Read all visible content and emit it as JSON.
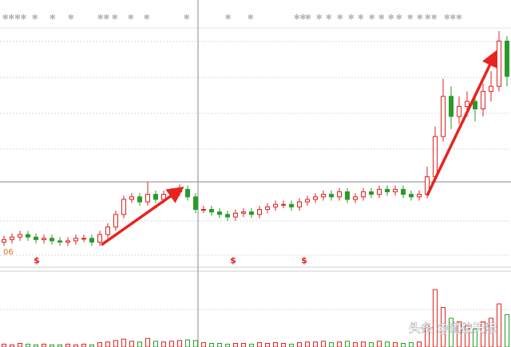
{
  "chart_data": {
    "type": "candlestick",
    "open": [
      10,
      11,
      12,
      13,
      12,
      11,
      11.5,
      10.5,
      10,
      10.5,
      11.5,
      11.5,
      10,
      13,
      16,
      21,
      27,
      28,
      26,
      29,
      27,
      29,
      30,
      31,
      28,
      23,
      23,
      22,
      21,
      20,
      21.5,
      22,
      21,
      23,
      24,
      25,
      25,
      24,
      26,
      27,
      28,
      29,
      28,
      30,
      27,
      28,
      30,
      29,
      31,
      30,
      31,
      29,
      28,
      29,
      36,
      52,
      68,
      60,
      64,
      66,
      63,
      70,
      72,
      90
    ],
    "high": [
      12.5,
      13.5,
      14.5,
      14.5,
      13.5,
      13,
      13,
      12,
      12,
      13,
      13,
      13,
      14.5,
      17.5,
      22.5,
      28.5,
      29.5,
      29.5,
      34,
      30.5,
      30.5,
      31.5,
      33,
      32.5,
      29.5,
      24.5,
      24.5,
      23.5,
      22.5,
      23,
      23.5,
      23.5,
      24.5,
      25.5,
      26.5,
      26.5,
      26.5,
      27.5,
      28.5,
      29.5,
      30.5,
      30.5,
      31.5,
      31.5,
      29.5,
      31.5,
      31.5,
      32.5,
      32.5,
      32.5,
      32.5,
      30.5,
      30.5,
      40,
      56,
      75,
      72,
      68,
      70,
      69,
      73,
      78,
      94,
      92
    ],
    "low": [
      8.5,
      9.5,
      10.5,
      10.5,
      9.5,
      9.5,
      9,
      8.5,
      8.5,
      9,
      10,
      8.5,
      8.5,
      11.5,
      14.5,
      19.5,
      25.5,
      24.5,
      24.5,
      25.5,
      25.5,
      27.5,
      28.5,
      26.5,
      21.5,
      21.5,
      20.5,
      19.5,
      18.5,
      18.5,
      20,
      19.5,
      19.5,
      21.5,
      22.5,
      23.5,
      22.5,
      22.5,
      24.5,
      25.5,
      26.5,
      26.5,
      26.5,
      25.5,
      25.5,
      26.5,
      27.5,
      27.5,
      28.5,
      28.5,
      27.5,
      26.5,
      26.5,
      27.5,
      34,
      50,
      55,
      57,
      60,
      58,
      60,
      66,
      70,
      72
    ],
    "close": [
      11,
      12,
      13,
      12,
      11,
      11.5,
      10.5,
      10,
      10.5,
      11.5,
      11.5,
      10,
      13,
      16,
      21,
      27,
      28,
      26,
      29,
      27,
      29,
      30,
      31,
      28,
      23,
      23,
      22,
      21,
      20,
      21.5,
      22,
      21,
      23,
      24,
      25,
      25,
      24,
      26,
      27,
      28,
      29,
      28,
      30,
      27,
      28,
      30,
      29,
      31,
      30,
      31,
      29,
      28,
      29,
      36,
      52,
      68,
      60,
      64,
      66,
      63,
      70,
      72,
      90,
      76
    ],
    "volume": [
      4,
      3,
      5,
      4,
      3,
      4,
      3,
      3,
      4,
      3,
      4,
      3,
      6,
      7,
      9,
      11,
      8,
      7,
      12,
      8,
      7,
      8,
      9,
      10,
      9,
      6,
      5,
      5,
      4,
      5,
      5,
      4,
      6,
      5,
      6,
      5,
      4,
      6,
      7,
      7,
      8,
      6,
      7,
      8,
      6,
      7,
      6,
      8,
      7,
      6,
      5,
      6,
      7,
      30,
      80,
      55,
      40,
      35,
      30,
      25,
      35,
      40,
      60,
      45
    ],
    "ylim": [
      0,
      100
    ],
    "y2lim": [
      0,
      100
    ],
    "up_color": "#e02020",
    "down_color": "#2a9a2a",
    "period_label": "06",
    "event_markers": [
      "$",
      "$",
      "$"
    ],
    "top_markers": [
      "✻✻✻✻",
      "✻",
      "✻",
      "✻",
      "✻✻",
      "✻",
      "✻",
      "✻",
      "✻",
      "✻",
      "✻",
      "✻✻",
      "✻",
      "✻",
      "✻",
      "✻",
      "✻",
      "✻",
      "✻",
      "✻",
      "✻",
      "✻",
      "✻",
      "✻",
      "✻",
      "✻",
      "✻✻✻"
    ],
    "watermark": "头条 @道破天际"
  }
}
